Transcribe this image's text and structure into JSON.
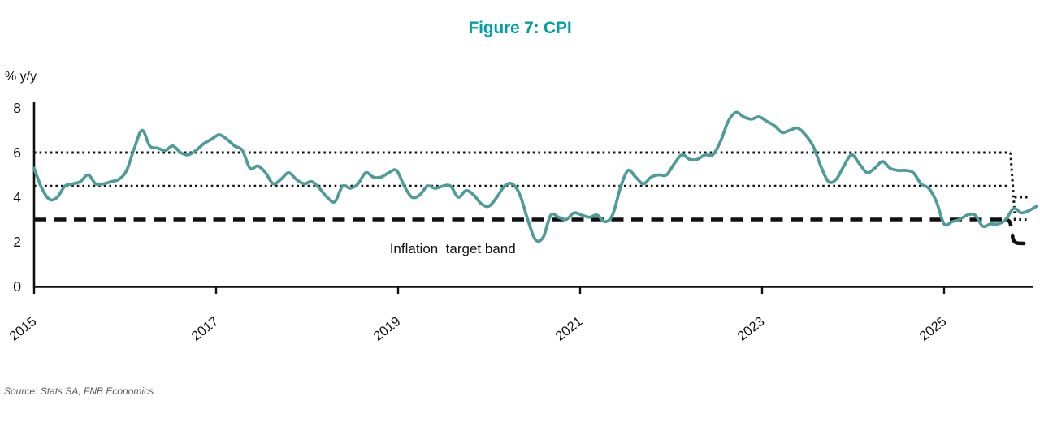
{
  "title": "Figure 7: CPI",
  "source": "Source: Stats SA, FNB Economics",
  "chart_data": {
    "type": "line",
    "title": "Figure 7: CPI",
    "xlabel": "",
    "ylabel": "% y/y",
    "ylim": [
      0,
      8
    ],
    "y_ticks": [
      0,
      2,
      4,
      6,
      8
    ],
    "x_ticks": [
      2015,
      2017,
      2019,
      2021,
      2023,
      2025
    ],
    "grid": "off",
    "legend": "none",
    "series": [
      {
        "name": "CPI",
        "start": "2014-12",
        "frequency": "monthly",
        "values": [
          5.3,
          4.4,
          3.9,
          4.0,
          4.5,
          4.6,
          4.7,
          5.0,
          4.6,
          4.6,
          4.7,
          4.8,
          5.2,
          6.2,
          7.0,
          6.3,
          6.2,
          6.1,
          6.3,
          6.0,
          5.9,
          6.1,
          6.4,
          6.6,
          6.8,
          6.6,
          6.3,
          6.1,
          5.3,
          5.4,
          5.1,
          4.6,
          4.8,
          5.1,
          4.8,
          4.6,
          4.7,
          4.4,
          4.0,
          3.8,
          4.5,
          4.4,
          4.6,
          5.1,
          4.9,
          4.9,
          5.1,
          5.2,
          4.5,
          4.0,
          4.1,
          4.5,
          4.4,
          4.5,
          4.5,
          4.0,
          4.3,
          4.1,
          3.7,
          3.6,
          4.0,
          4.5,
          4.6,
          4.1,
          3.0,
          2.1,
          2.2,
          3.2,
          3.1,
          3.0,
          3.3,
          3.2,
          3.1,
          3.2,
          2.9,
          3.2,
          4.4,
          5.2,
          4.9,
          4.6,
          4.9,
          5.0,
          5.0,
          5.5,
          5.9,
          5.7,
          5.7,
          5.9,
          5.9,
          6.5,
          7.4,
          7.8,
          7.6,
          7.5,
          7.6,
          7.4,
          7.2,
          6.9,
          7.0,
          7.1,
          6.8,
          6.3,
          5.4,
          4.7,
          4.8,
          5.4,
          5.9,
          5.5,
          5.1,
          5.3,
          5.6,
          5.3,
          5.2,
          5.2,
          5.1,
          4.6,
          4.4,
          3.8,
          2.8,
          2.9,
          3.0,
          3.2,
          3.2,
          2.7,
          2.8,
          2.8,
          3.0,
          3.5,
          3.3,
          3.4,
          3.6
        ]
      }
    ],
    "target_band": {
      "old": {
        "upper": 6,
        "midpoint": 4.5,
        "lower": 3
      },
      "new": {
        "upper": 4,
        "midpoint": 3,
        "lower": 2
      },
      "line_styles": {
        "upper": "dotted",
        "midpoint": "dotted",
        "lower": "dashed"
      },
      "transition_x_year": 2025.73
    },
    "annotation": {
      "text": "Inflation  target band",
      "x_year": 2019.6,
      "y_value": 1.5
    },
    "colors": {
      "line": "#4D9C98",
      "title": "#009FA8",
      "band": "#111111",
      "axis": "#111111",
      "source_text": "#595959"
    }
  }
}
